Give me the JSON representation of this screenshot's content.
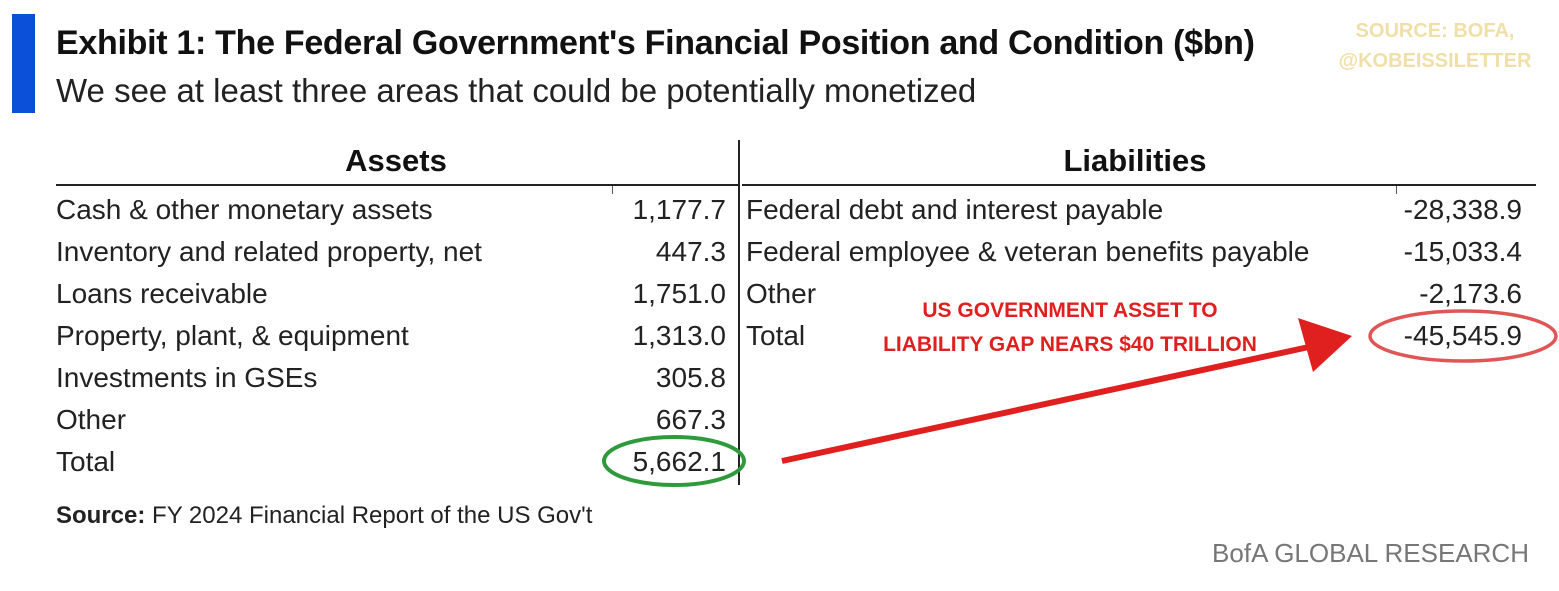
{
  "header": {
    "title": "Exhibit 1: The Federal Government's Financial Position and Condition ($bn)",
    "subtitle": "We see at least three areas that could be potentially monetized"
  },
  "watermark": {
    "line1": "SOURCE: BOFA,",
    "line2": "@KOBEISSILETTER"
  },
  "table": {
    "assets_header": "Assets",
    "liabilities_header": "Liabilities",
    "assets": [
      {
        "label": "Cash & other monetary assets",
        "value": "1,177.7"
      },
      {
        "label": "Inventory and related property, net",
        "value": "447.3"
      },
      {
        "label": "Loans receivable",
        "value": "1,751.0"
      },
      {
        "label": "Property, plant, & equipment",
        "value": "1,313.0"
      },
      {
        "label": "Investments in GSEs",
        "value": "305.8"
      },
      {
        "label": "Other",
        "value": "667.3"
      },
      {
        "label": "Total",
        "value": "5,662.1"
      }
    ],
    "liabilities": [
      {
        "label": "Federal debt and interest payable",
        "value": "-28,338.9"
      },
      {
        "label": "Federal employee & veteran benefits payable",
        "value": "-15,033.4"
      },
      {
        "label": "Other",
        "value": "-2,173.6"
      },
      {
        "label": "Total",
        "value": "-45,545.9"
      }
    ]
  },
  "annotation": {
    "line1": "US GOVERNMENT ASSET TO",
    "line2": "LIABILITY GAP NEARS $40 TRILLION",
    "color": "#e01f1f"
  },
  "footer": {
    "source_label": "Source:",
    "source_text": " FY 2024 Financial Report of the US Gov't",
    "brand": "BofA GLOBAL RESEARCH"
  },
  "colors": {
    "accent_bar": "#0a50d8",
    "assets_total_circle": "#2e9a3c",
    "liabilities_total_circle": "#e05555",
    "arrow": "#e01f1f"
  }
}
